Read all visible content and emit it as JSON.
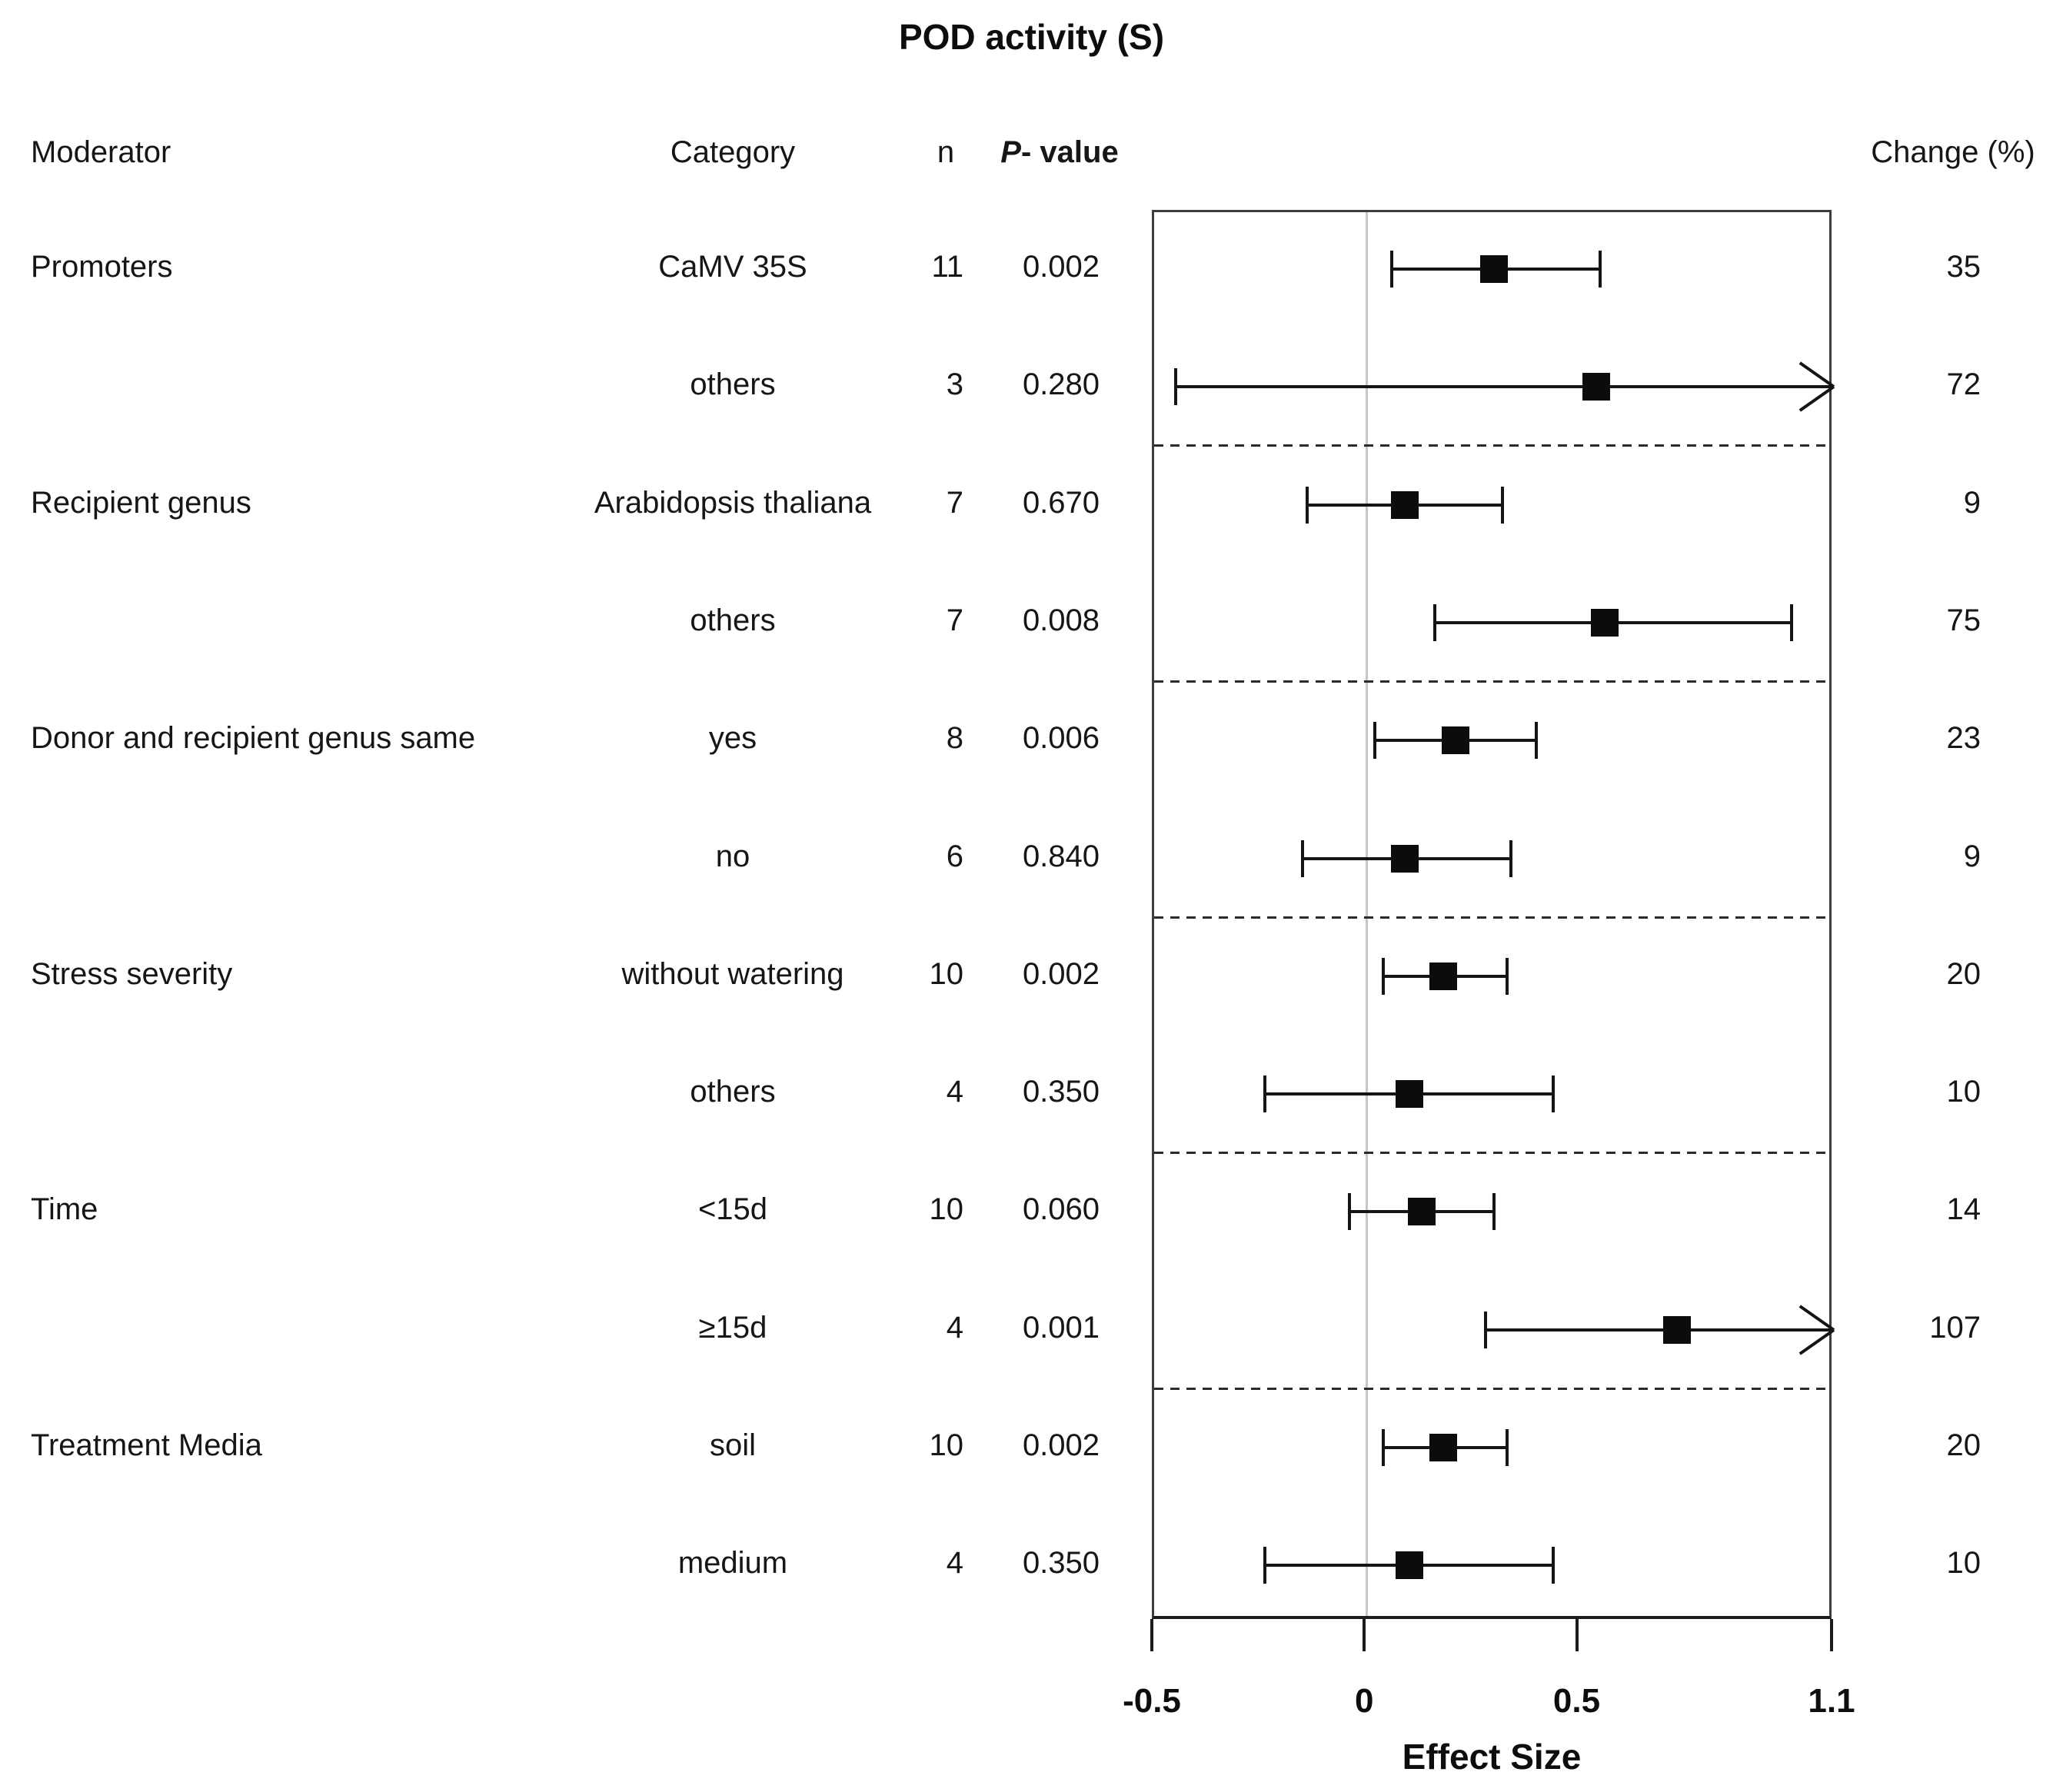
{
  "columns": {
    "moderator": "Moderator",
    "category": "Category",
    "n": "n",
    "p_italic": "P",
    "p_rest": "- value",
    "change": "Change (%)"
  },
  "chart_data": {
    "type": "forest",
    "title": "POD activity (S)",
    "xlabel": "Effect Size",
    "xlim": [
      -0.5,
      1.1
    ],
    "xticks": [
      -0.5,
      0,
      0.5,
      1.1
    ],
    "xtick_labels": [
      "-0.5",
      "0",
      "0.5",
      "1.1"
    ],
    "zero_line": 0,
    "grid": false,
    "legend": null,
    "rows": [
      {
        "moderator": "Promoters",
        "category": "CaMV 35S",
        "n": "11",
        "p_value": "0.002",
        "change_pct": "35",
        "estimate": 0.3,
        "ci_low": 0.06,
        "ci_high": 0.55,
        "arrow_high": false
      },
      {
        "moderator": "",
        "category": "others",
        "n": "3",
        "p_value": "0.280",
        "change_pct": "72",
        "estimate": 0.54,
        "ci_low": -0.45,
        "ci_high": 1.1,
        "arrow_high": true
      },
      {
        "moderator": "Recipient genus",
        "category": "Arabidopsis thaliana",
        "n": "7",
        "p_value": "0.670",
        "change_pct": "9",
        "estimate": 0.09,
        "ci_low": -0.14,
        "ci_high": 0.32,
        "arrow_high": false
      },
      {
        "moderator": "",
        "category": "others",
        "n": "7",
        "p_value": "0.008",
        "change_pct": "75",
        "estimate": 0.56,
        "ci_low": 0.16,
        "ci_high": 1.0,
        "arrow_high": false
      },
      {
        "moderator": "Donor and recipient genus same",
        "category": "yes",
        "n": "8",
        "p_value": "0.006",
        "change_pct": "23",
        "estimate": 0.21,
        "ci_low": 0.02,
        "ci_high": 0.4,
        "arrow_high": false
      },
      {
        "moderator": "",
        "category": "no",
        "n": "6",
        "p_value": "0.840",
        "change_pct": "9",
        "estimate": 0.09,
        "ci_low": -0.15,
        "ci_high": 0.34,
        "arrow_high": false
      },
      {
        "moderator": "Stress severity",
        "category": "without watering",
        "n": "10",
        "p_value": "0.002",
        "change_pct": "20",
        "estimate": 0.18,
        "ci_low": 0.04,
        "ci_high": 0.33,
        "arrow_high": false
      },
      {
        "moderator": "",
        "category": "others",
        "n": "4",
        "p_value": "0.350",
        "change_pct": "10",
        "estimate": 0.1,
        "ci_low": -0.24,
        "ci_high": 0.44,
        "arrow_high": false
      },
      {
        "moderator": "Time",
        "category": "<15d",
        "n": "10",
        "p_value": "0.060",
        "change_pct": "14",
        "estimate": 0.13,
        "ci_low": -0.04,
        "ci_high": 0.3,
        "arrow_high": false
      },
      {
        "moderator": "",
        "category": "≥15d",
        "n": "4",
        "p_value": "0.001",
        "change_pct": "107",
        "estimate": 0.73,
        "ci_low": 0.28,
        "ci_high": 1.1,
        "arrow_high": true
      },
      {
        "moderator": "Treatment Media",
        "category": "soil",
        "n": "10",
        "p_value": "0.002",
        "change_pct": "20",
        "estimate": 0.18,
        "ci_low": 0.04,
        "ci_high": 0.33,
        "arrow_high": false
      },
      {
        "moderator": "",
        "category": "medium",
        "n": "4",
        "p_value": "0.350",
        "change_pct": "10",
        "estimate": 0.1,
        "ci_low": -0.24,
        "ci_high": 0.44,
        "arrow_high": false
      }
    ],
    "group_separators_after_rows": [
      1,
      3,
      5,
      7,
      9
    ]
  }
}
